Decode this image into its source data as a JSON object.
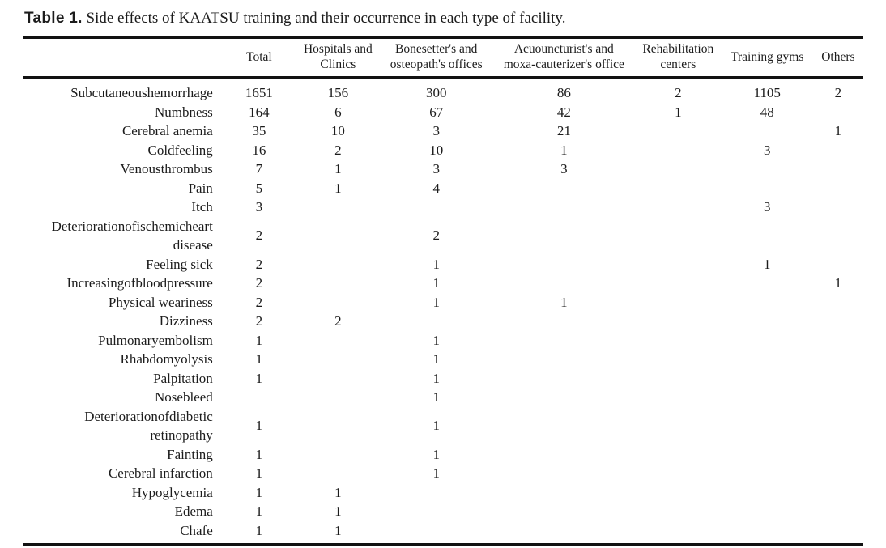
{
  "title": {
    "bold": "Table 1.",
    "rest": " Side effects of KAATSU training and their occurrence in each type of facility."
  },
  "table": {
    "columns": [
      "",
      "Total",
      "Hospitals and\nClinics",
      "Bonesetter's and\nosteopath's offices",
      "Acuouncturist's and\nmoxa-cauterizer's office",
      "Rehabilitation\ncenters",
      "Training gyms",
      "Others"
    ],
    "rows": [
      {
        "label": "Subcutaneoushemorrhage",
        "values": [
          "1651",
          "156",
          "300",
          "86",
          "2",
          "1105",
          "2"
        ]
      },
      {
        "label": "Numbness",
        "values": [
          "164",
          "6",
          "67",
          "42",
          "1",
          "48",
          ""
        ]
      },
      {
        "label": "Cerebral anemia",
        "values": [
          "35",
          "10",
          "3",
          "21",
          "",
          "",
          "1"
        ]
      },
      {
        "label": "Coldfeeling",
        "values": [
          "16",
          "2",
          "10",
          "1",
          "",
          "3",
          ""
        ]
      },
      {
        "label": "Venousthrombus",
        "values": [
          "7",
          "1",
          "3",
          "3",
          "",
          "",
          ""
        ]
      },
      {
        "label": "Pain",
        "values": [
          "5",
          "1",
          "4",
          "",
          "",
          "",
          ""
        ]
      },
      {
        "label": "Itch",
        "values": [
          "3",
          "",
          "",
          "",
          "",
          "3",
          ""
        ]
      },
      {
        "label": "Deteriorationofischemicheart disease",
        "values": [
          "2",
          "",
          "2",
          "",
          "",
          "",
          ""
        ]
      },
      {
        "label": "Feeling sick",
        "values": [
          "2",
          "",
          "1",
          "",
          "",
          "1",
          ""
        ]
      },
      {
        "label": "Increasingofbloodpressure",
        "values": [
          "2",
          "",
          "1",
          "",
          "",
          "",
          "1"
        ]
      },
      {
        "label": "Physical weariness",
        "values": [
          "2",
          "",
          "1",
          "1",
          "",
          "",
          ""
        ]
      },
      {
        "label": "Dizziness",
        "values": [
          "2",
          "2",
          "",
          "",
          "",
          "",
          ""
        ]
      },
      {
        "label": "Pulmonaryembolism",
        "values": [
          "1",
          "",
          "1",
          "",
          "",
          "",
          ""
        ]
      },
      {
        "label": "Rhabdomyolysis",
        "values": [
          "1",
          "",
          "1",
          "",
          "",
          "",
          ""
        ]
      },
      {
        "label": "Palpitation",
        "values": [
          "1",
          "",
          "1",
          "",
          "",
          "",
          ""
        ]
      },
      {
        "label": "Nosebleed",
        "values": [
          "",
          "",
          "1",
          "",
          "",
          "",
          ""
        ]
      },
      {
        "label": "Deteriorationofdiabetic retinopathy",
        "values": [
          "1",
          "",
          "1",
          "",
          "",
          "",
          ""
        ]
      },
      {
        "label": "Fainting",
        "values": [
          "1",
          "",
          "1",
          "",
          "",
          "",
          ""
        ]
      },
      {
        "label": "Cerebral infarction",
        "values": [
          "1",
          "",
          "1",
          "",
          "",
          "",
          ""
        ]
      },
      {
        "label": "Hypoglycemia",
        "values": [
          "1",
          "1",
          "",
          "",
          "",
          "",
          ""
        ]
      },
      {
        "label": "Edema",
        "values": [
          "1",
          "1",
          "",
          "",
          "",
          "",
          ""
        ]
      },
      {
        "label": "Chafe",
        "values": [
          "1",
          "1",
          "",
          "",
          "",
          "",
          ""
        ]
      }
    ]
  }
}
